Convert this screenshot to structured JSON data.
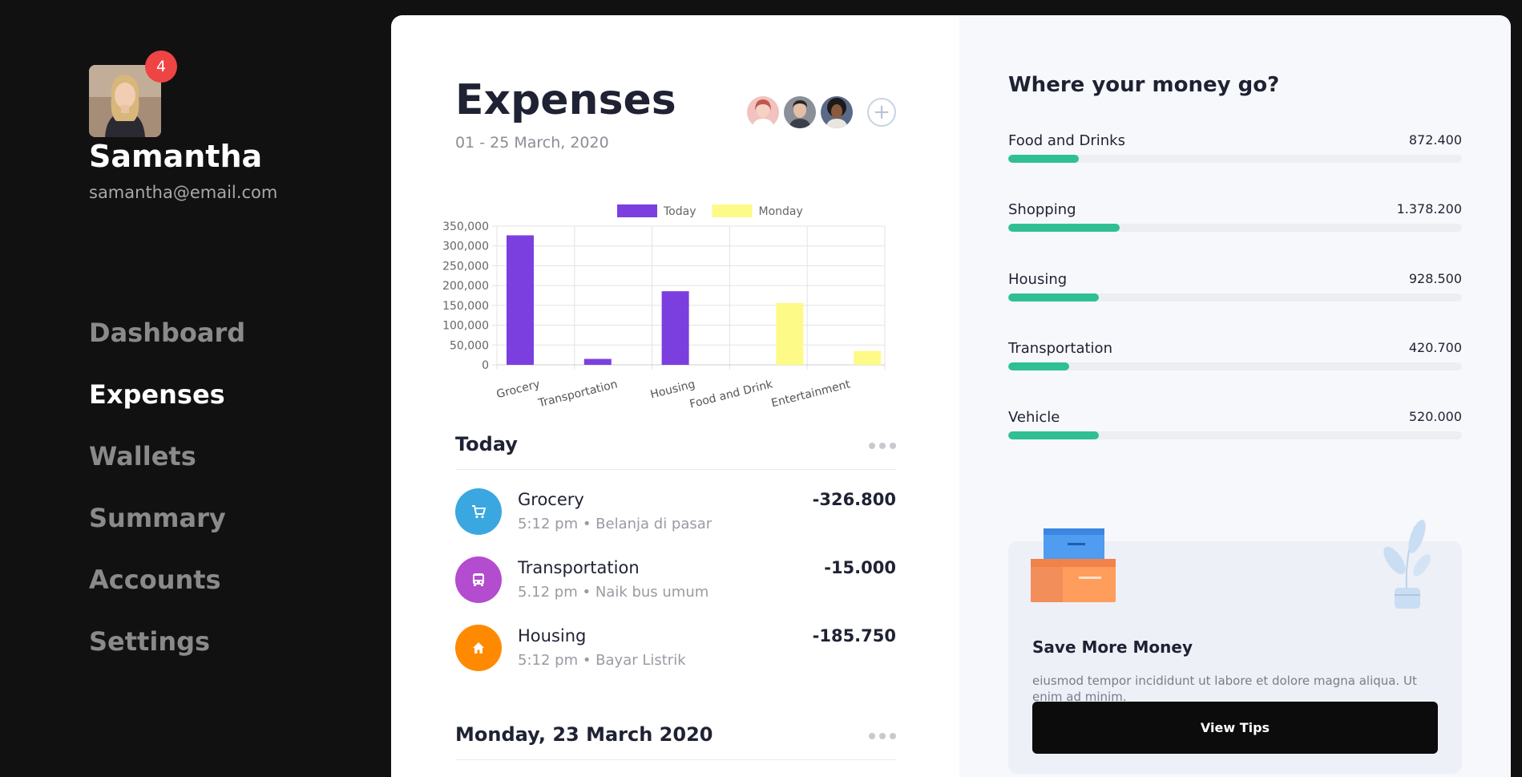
{
  "user": {
    "name": "Samantha",
    "email": "samantha@email.com",
    "notifications": "4"
  },
  "nav": {
    "items": [
      {
        "label": "Dashboard",
        "active": false
      },
      {
        "label": "Expenses",
        "active": true
      },
      {
        "label": "Wallets",
        "active": false
      },
      {
        "label": "Summary",
        "active": false
      },
      {
        "label": "Accounts",
        "active": false
      },
      {
        "label": "Settings",
        "active": false
      }
    ]
  },
  "main": {
    "title": "Expenses",
    "date_range": "01 - 25 March, 2020",
    "add_member_label": "+",
    "today": {
      "title": "Today",
      "transactions": [
        {
          "name": "Grocery",
          "meta": "5:12 pm • Belanja di pasar",
          "amount": "-326.800",
          "icon": "cart-icon",
          "color": "#3aa7e0"
        },
        {
          "name": "Transportation",
          "meta": "5.12 pm • Naik bus umum",
          "amount": "-15.000",
          "icon": "bus-icon",
          "color": "#b34ccf"
        },
        {
          "name": "Housing",
          "meta": "5:12 pm • Bayar Listrik",
          "amount": "-185.750",
          "icon": "home-icon",
          "color": "#ff8a00"
        }
      ]
    },
    "monday": {
      "title": "Monday, 23 March 2020"
    }
  },
  "chart_data": {
    "type": "bar",
    "categories": [
      "Grocery",
      "Transportation",
      "Housing",
      "Food and Drink",
      "Entertainment"
    ],
    "series": [
      {
        "name": "Today",
        "values": [
          326800,
          15000,
          185750,
          0,
          0
        ],
        "color": "#7b3fe0"
      },
      {
        "name": "Monday",
        "values": [
          0,
          0,
          0,
          156000,
          35000
        ],
        "color": "#fdfa87"
      }
    ],
    "yticks": [
      "0",
      "50,000",
      "100,000",
      "150,000",
      "200,000",
      "250,000",
      "300,000",
      "350,000"
    ],
    "ylim": [
      0,
      350000
    ],
    "legend": "top-center",
    "grid": true
  },
  "right": {
    "title": "Where your money go?",
    "categories": [
      {
        "name": "Food and Drinks",
        "value": "872.400",
        "fraction": 0.155
      },
      {
        "name": "Shopping",
        "value": "1.378.200",
        "fraction": 0.245
      },
      {
        "name": "Housing",
        "value": "928.500",
        "fraction": 0.2
      },
      {
        "name": "Transportation",
        "value": "420.700",
        "fraction": 0.135
      },
      {
        "name": "Vehicle",
        "value": "520.000",
        "fraction": 0.2
      }
    ],
    "tips": {
      "title": "Save More Money",
      "text": "eiusmod tempor incididunt ut labore et dolore magna aliqua. Ut enim ad minim.",
      "button": "View Tips"
    }
  }
}
